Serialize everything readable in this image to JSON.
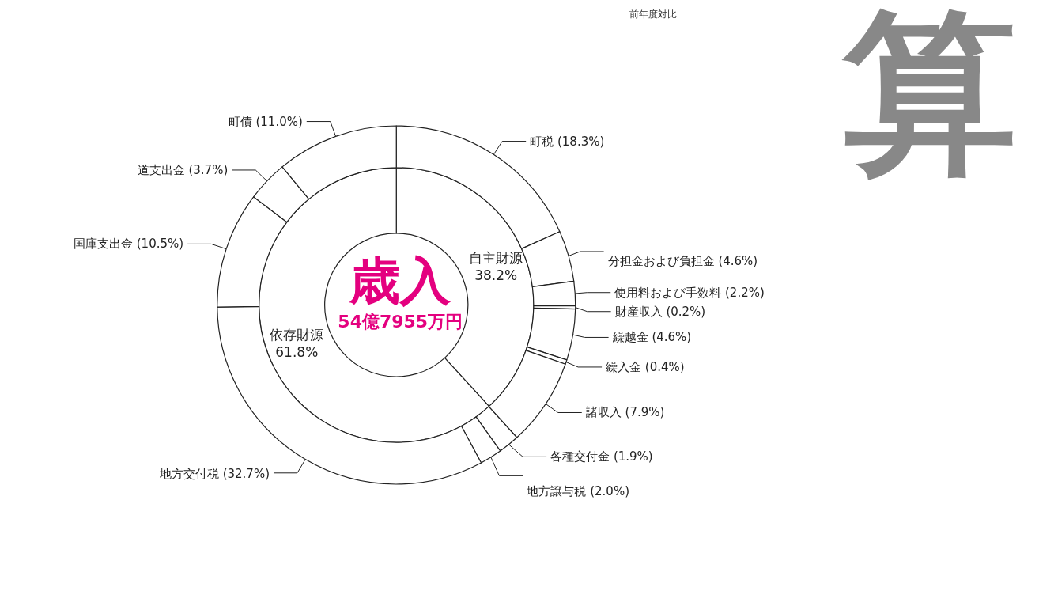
{
  "chart_data": [
    {
      "type": "donut",
      "title": "歳入",
      "subtitle": "54億7955万円",
      "legend": false,
      "data_labels": true,
      "color": "#ffffff",
      "categories": [
        "自主財源",
        "依存財源"
      ],
      "values": [
        38.2,
        61.8
      ],
      "value_labels": [
        "38.2%",
        "61.8%"
      ]
    },
    {
      "type": "donut",
      "legend": false,
      "data_labels": true,
      "color": "#ffffff",
      "annotations": [
        "前年度対比",
        "算"
      ],
      "categories": [
        "町税",
        "分担金および負担金",
        "使用料および手数料",
        "財産収入",
        "繰越金",
        "繰入金",
        "諸収入",
        "各種交付金",
        "地方譲与税",
        "地方交付税",
        "国庫支出金",
        "道支出金",
        "町債"
      ],
      "values": [
        18.3,
        4.6,
        2.2,
        0.2,
        4.6,
        0.4,
        7.9,
        1.9,
        2.0,
        32.7,
        10.5,
        3.7,
        11.0
      ],
      "value_labels": [
        "(18.3%)",
        "(4.6%)",
        "(2.2%)",
        "(0.2%)",
        "(4.6%)",
        "(0.4%)",
        "(7.9%)",
        "(1.9%)",
        "(2.0%)",
        "(32.7%)",
        "(10.5%)",
        "(3.7%)",
        "(11.0%)"
      ]
    }
  ]
}
